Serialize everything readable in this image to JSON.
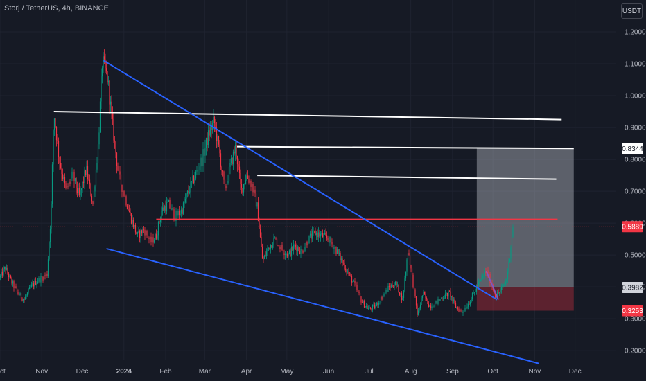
{
  "header": {
    "symbol_title": "Storj / TetherUS, 4h, BINANCE",
    "currency_button": "USDT"
  },
  "chart_data": {
    "type": "candlestick",
    "ylim": [
      0.17,
      1.3
    ],
    "y_ticks": [
      "1.2000",
      "1.1000",
      "1.0000",
      "0.9000",
      "0.8000",
      "0.7000",
      "0.6000",
      "0.5000",
      "0.4000",
      "0.3000",
      "0.2000"
    ],
    "x_ticks": [
      "Oct",
      "Nov",
      "Dec",
      "2024",
      "Feb",
      "Mar",
      "Apr",
      "May",
      "Jun",
      "Jul",
      "Aug",
      "Sep",
      "Oct",
      "Nov",
      "Dec"
    ],
    "x_start": "2023-10-01",
    "x_end": "2024-12-31",
    "grid": true,
    "current_price": "0.5889",
    "price_labels": [
      {
        "value": "0.8344",
        "price": 0.8344,
        "color": "#ffffff",
        "text_color": "#131722"
      },
      {
        "value": "0.5889",
        "price": 0.5889,
        "color": "#f23645",
        "text_color": "#ffffff"
      },
      {
        "value": "0.3982",
        "price": 0.3982,
        "color": "#d1d4dc",
        "text_color": "#131722"
      },
      {
        "value": "0.3253",
        "price": 0.3253,
        "color": "#f23645",
        "text_color": "#ffffff"
      }
    ],
    "price_path": [
      [
        "2023-10-01",
        0.43
      ],
      [
        "2023-10-05",
        0.46
      ],
      [
        "2023-10-09",
        0.42
      ],
      [
        "2023-10-14",
        0.38
      ],
      [
        "2023-10-19",
        0.36
      ],
      [
        "2023-10-24",
        0.4
      ],
      [
        "2023-10-29",
        0.42
      ],
      [
        "2023-11-05",
        0.44
      ],
      [
        "2023-11-08",
        0.64
      ],
      [
        "2023-11-10",
        0.95
      ],
      [
        "2023-11-14",
        0.8
      ],
      [
        "2023-11-19",
        0.7
      ],
      [
        "2023-11-24",
        0.75
      ],
      [
        "2023-11-29",
        0.68
      ],
      [
        "2023-12-04",
        0.77
      ],
      [
        "2023-12-09",
        0.66
      ],
      [
        "2023-12-13",
        0.85
      ],
      [
        "2023-12-16",
        1.11
      ],
      [
        "2023-12-20",
        1.05
      ],
      [
        "2023-12-24",
        0.89
      ],
      [
        "2023-12-28",
        0.75
      ],
      [
        "2024-01-02",
        0.68
      ],
      [
        "2024-01-06",
        0.62
      ],
      [
        "2024-01-11",
        0.56
      ],
      [
        "2024-01-16",
        0.58
      ],
      [
        "2024-01-21",
        0.54
      ],
      [
        "2024-01-25",
        0.56
      ],
      [
        "2024-01-29",
        0.64
      ],
      [
        "2024-02-03",
        0.66
      ],
      [
        "2024-02-08",
        0.62
      ],
      [
        "2024-02-13",
        0.64
      ],
      [
        "2024-02-18",
        0.7
      ],
      [
        "2024-02-23",
        0.75
      ],
      [
        "2024-02-28",
        0.8
      ],
      [
        "2024-03-04",
        0.88
      ],
      [
        "2024-03-08",
        0.92
      ],
      [
        "2024-03-12",
        0.82
      ],
      [
        "2024-03-16",
        0.7
      ],
      [
        "2024-03-20",
        0.78
      ],
      [
        "2024-03-24",
        0.84
      ],
      [
        "2024-03-28",
        0.7
      ],
      [
        "2024-04-01",
        0.75
      ],
      [
        "2024-04-05",
        0.72
      ],
      [
        "2024-04-09",
        0.65
      ],
      [
        "2024-04-13",
        0.48
      ],
      [
        "2024-04-17",
        0.52
      ],
      [
        "2024-04-22",
        0.55
      ],
      [
        "2024-04-27",
        0.52
      ],
      [
        "2024-05-02",
        0.5
      ],
      [
        "2024-05-07",
        0.53
      ],
      [
        "2024-05-12",
        0.51
      ],
      [
        "2024-05-17",
        0.55
      ],
      [
        "2024-05-22",
        0.57
      ],
      [
        "2024-05-27",
        0.56
      ],
      [
        "2024-06-01",
        0.55
      ],
      [
        "2024-06-06",
        0.52
      ],
      [
        "2024-06-11",
        0.48
      ],
      [
        "2024-06-16",
        0.44
      ],
      [
        "2024-06-21",
        0.4
      ],
      [
        "2024-06-26",
        0.35
      ],
      [
        "2024-07-01",
        0.33
      ],
      [
        "2024-07-06",
        0.34
      ],
      [
        "2024-07-11",
        0.37
      ],
      [
        "2024-07-16",
        0.4
      ],
      [
        "2024-07-21",
        0.41
      ],
      [
        "2024-07-26",
        0.36
      ],
      [
        "2024-07-30",
        0.52
      ],
      [
        "2024-08-03",
        0.4
      ],
      [
        "2024-08-06",
        0.31
      ],
      [
        "2024-08-10",
        0.38
      ],
      [
        "2024-08-15",
        0.34
      ],
      [
        "2024-08-20",
        0.35
      ],
      [
        "2024-08-25",
        0.37
      ],
      [
        "2024-08-30",
        0.38
      ],
      [
        "2024-09-03",
        0.34
      ],
      [
        "2024-09-08",
        0.32
      ],
      [
        "2024-09-13",
        0.35
      ],
      [
        "2024-09-18",
        0.39
      ],
      [
        "2024-09-22",
        0.42
      ],
      [
        "2024-09-26",
        0.45
      ],
      [
        "2024-09-30",
        0.41
      ],
      [
        "2024-10-03",
        0.37
      ],
      [
        "2024-10-07",
        0.39
      ],
      [
        "2024-10-11",
        0.42
      ],
      [
        "2024-10-13",
        0.48
      ],
      [
        "2024-10-15",
        0.56
      ],
      [
        "2024-10-16",
        0.5889
      ]
    ],
    "annotations": {
      "resistance_lines": [
        {
          "from": [
            "2023-11-10",
            0.95
          ],
          "to": [
            "2024-11-21",
            0.925
          ],
          "color": "#ffffff"
        },
        {
          "from": [
            "2024-03-25",
            0.84
          ],
          "to": [
            "2024-11-30",
            0.8344
          ],
          "color": "#ffffff"
        },
        {
          "from": [
            "2024-04-09",
            0.75
          ],
          "to": [
            "2024-11-17",
            0.738
          ],
          "color": "#ffffff"
        },
        {
          "from": [
            "2024-01-25",
            0.612
          ],
          "to": [
            "2024-11-18",
            0.612
          ],
          "color": "#f23645"
        }
      ],
      "wedge_lines": [
        {
          "from": [
            "2023-12-17",
            1.11
          ],
          "to": [
            "2024-10-04",
            0.36
          ],
          "color": "#2962ff"
        },
        {
          "from": [
            "2023-12-19",
            0.52
          ],
          "to": [
            "2024-11-04",
            0.16
          ],
          "color": "#2962ff"
        },
        {
          "from": [
            "2024-09-26",
            0.45
          ],
          "to": [
            "2024-10-05",
            0.36
          ],
          "color": "#7e57c2"
        }
      ],
      "position_box": {
        "entry": 0.3982,
        "stop": 0.3253,
        "target": 0.8344,
        "from": "2024-09-19",
        "to": "2024-11-30",
        "profit_color": "#b2b5be",
        "loss_color": "#f23645"
      }
    }
  }
}
